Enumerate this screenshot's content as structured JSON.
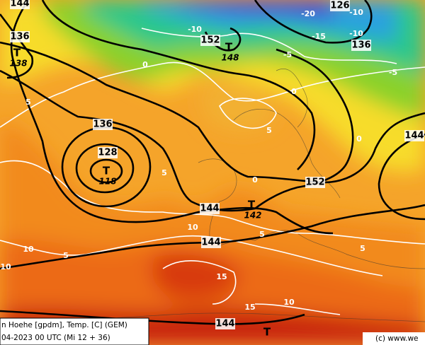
{
  "caption": {
    "line1": "n Hoehe [gpdm], Temp. [C] (GEM)",
    "line2": "04-2023 00 UTC (Mi 12 + 36)"
  },
  "copyright": "(c) www.we",
  "lows": [
    {
      "label": "T",
      "value": "138"
    },
    {
      "label": "T",
      "value": "148"
    },
    {
      "label": "T",
      "value": "118"
    },
    {
      "label": "T",
      "value": "142"
    },
    {
      "label": "T"
    }
  ],
  "height_labels": [
    "144",
    "136",
    "152",
    "126",
    "136",
    "136",
    "128",
    "152",
    "144",
    "144",
    "144",
    "144"
  ],
  "temp_labels": [
    "0",
    "0",
    "0",
    "0",
    "5",
    "5",
    "5",
    "5",
    "5",
    "5",
    "10",
    "10",
    "10",
    "10",
    "15",
    "15",
    "15",
    "-10",
    "-10",
    "-10",
    "-5",
    "-5",
    "-15",
    "-20"
  ]
}
